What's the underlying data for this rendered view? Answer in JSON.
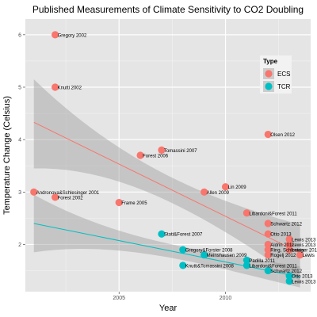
{
  "chart_data": {
    "type": "scatter",
    "title": "Published Measurements of Climate Sensitivity to CO2 Doubling",
    "xlabel": "Year",
    "ylabel": "Temperature Change (Celsius)",
    "xlim": [
      2000.6,
      2014.0
    ],
    "ylim": [
      1.1,
      6.3
    ],
    "x_ticks": [
      2005,
      2010
    ],
    "y_ticks": [
      2,
      3,
      4,
      5,
      6
    ],
    "grid": true,
    "legend": {
      "title": "Type",
      "position": "top-right",
      "entries": [
        {
          "label": "ECS",
          "color": "#F8766D"
        },
        {
          "label": "TCR",
          "color": "#00BFC4"
        }
      ]
    },
    "series": [
      {
        "name": "ECS",
        "color": "#F8766D",
        "points": [
          {
            "x": 2002.0,
            "y": 6.0,
            "label": "Gregory 2002"
          },
          {
            "x": 2002.0,
            "y": 5.0,
            "label": "Knutti 2002"
          },
          {
            "x": 2001.0,
            "y": 3.0,
            "label": "Andronova&Schlesinger 2001"
          },
          {
            "x": 2002.0,
            "y": 2.9,
            "label": "Forest 2002"
          },
          {
            "x": 2005.0,
            "y": 2.8,
            "label": "Frame 2005"
          },
          {
            "x": 2006.0,
            "y": 3.7,
            "label": "Forest 2006"
          },
          {
            "x": 2007.0,
            "y": 3.8,
            "label": "Tomassini 2007"
          },
          {
            "x": 2009.0,
            "y": 3.0,
            "label": "Allen 2009"
          },
          {
            "x": 2010.0,
            "y": 3.1,
            "label": "Lin 2009"
          },
          {
            "x": 2011.0,
            "y": 2.6,
            "label": "Libardoni&Forest 2011"
          },
          {
            "x": 2012.0,
            "y": 4.1,
            "label": "Olsen 2012"
          },
          {
            "x": 2012.0,
            "y": 2.4,
            "label": "Schwartz 2012"
          },
          {
            "x": 2012.0,
            "y": 2.2,
            "label": "Otto 2013"
          },
          {
            "x": 2013.0,
            "y": 2.1,
            "label": "Lewis 2013"
          },
          {
            "x": 2012.0,
            "y": 2.0,
            "label": "Aldrin 2012"
          },
          {
            "x": 2013.0,
            "y": 2.0,
            "label": "Lewis 2013"
          },
          {
            "x": 2012.0,
            "y": 1.9,
            "label": "Ring, Schlesinger 2012"
          },
          {
            "x": 2013.0,
            "y": 1.9,
            "label": "Lewis"
          },
          {
            "x": 2012.0,
            "y": 1.8,
            "label": "Rogelj 2012"
          },
          {
            "x": 2013.5,
            "y": 1.8,
            "label": "Lewis"
          }
        ],
        "trend": {
          "x": [
            2001.0,
            2013.5
          ],
          "y": [
            4.33,
            1.84
          ]
        },
        "band_upper": [
          5.15,
          2.38
        ],
        "band_lower": [
          3.45,
          1.3
        ]
      },
      {
        "name": "TCR",
        "color": "#00BFC4",
        "points": [
          {
            "x": 2007.0,
            "y": 2.2,
            "label": "Stott&Forest 2007"
          },
          {
            "x": 2008.0,
            "y": 1.9,
            "label": "Gregory&Forster 2008"
          },
          {
            "x": 2009.0,
            "y": 1.8,
            "label": "Meinshausen 2009"
          },
          {
            "x": 2008.0,
            "y": 1.6,
            "label": "Knutti&Tomassini 2008"
          },
          {
            "x": 2011.0,
            "y": 1.7,
            "label": "Padilla 2011"
          },
          {
            "x": 2011.0,
            "y": 1.6,
            "label": "Libardoni&Forest 2011"
          },
          {
            "x": 2012.0,
            "y": 1.5,
            "label": "Schwartz 2012"
          },
          {
            "x": 2013.0,
            "y": 1.4,
            "label": "Otto 2013"
          },
          {
            "x": 2013.0,
            "y": 1.3,
            "label": "Lewis 2013"
          }
        ],
        "trend": {
          "x": [
            2001.0,
            2013.5
          ],
          "y": [
            2.4,
            1.38
          ]
        },
        "band_upper": [
          2.95,
          1.58
        ],
        "band_lower": [
          1.85,
          1.18
        ]
      }
    ]
  }
}
